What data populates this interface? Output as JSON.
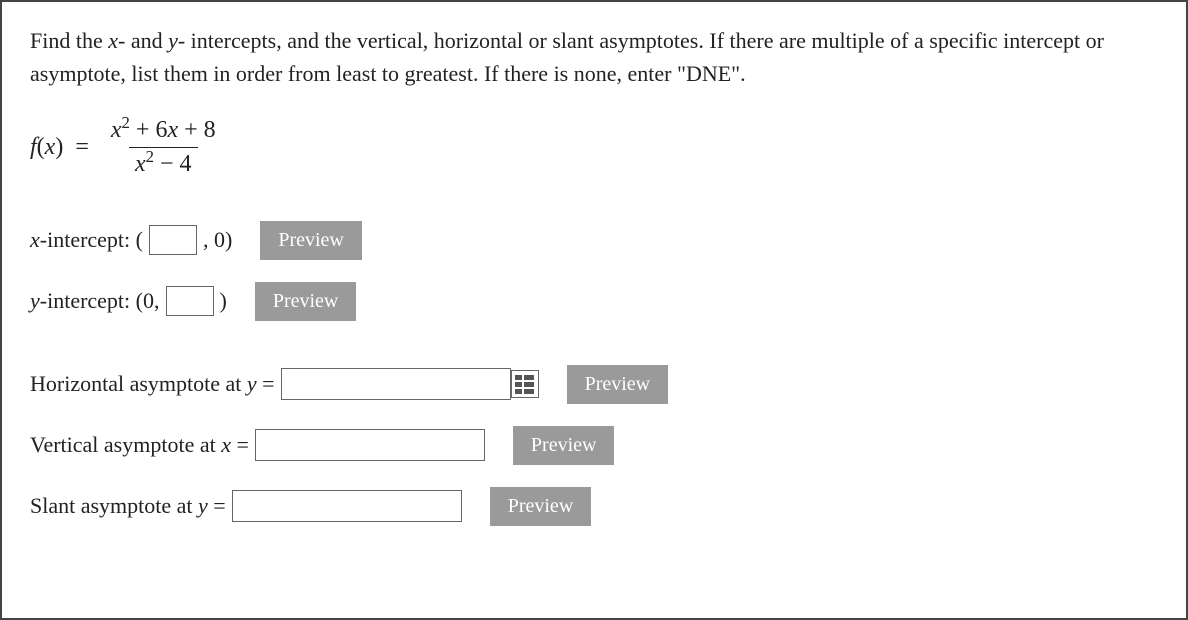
{
  "instructions": "Find the x- and y- intercepts, and the vertical, horizontal or slant asymptotes. If there are multiple of a specific intercept or asymptote, list them in order from least to greatest. If there is none, enter \"DNE\".",
  "formula": {
    "lhs_f": "f",
    "lhs_var": "x",
    "numerator": "x² + 6x + 8",
    "denominator": "x² − 4"
  },
  "xint": {
    "label_pre": "-intercept: (",
    "label_post": " , 0)",
    "preview": "Preview"
  },
  "yint": {
    "label_pre": "-intercept: (0, ",
    "label_post": " )",
    "preview": "Preview"
  },
  "ha": {
    "label": "Horizontal asymptote at ",
    "var": "y",
    "eq": " = ",
    "preview": "Preview"
  },
  "va": {
    "label": "Vertical asymptote at ",
    "var": "x",
    "eq": " = ",
    "preview": "Preview"
  },
  "sa": {
    "label": "Slant asymptote at ",
    "var": "y",
    "eq": " = ",
    "preview": "Preview"
  }
}
